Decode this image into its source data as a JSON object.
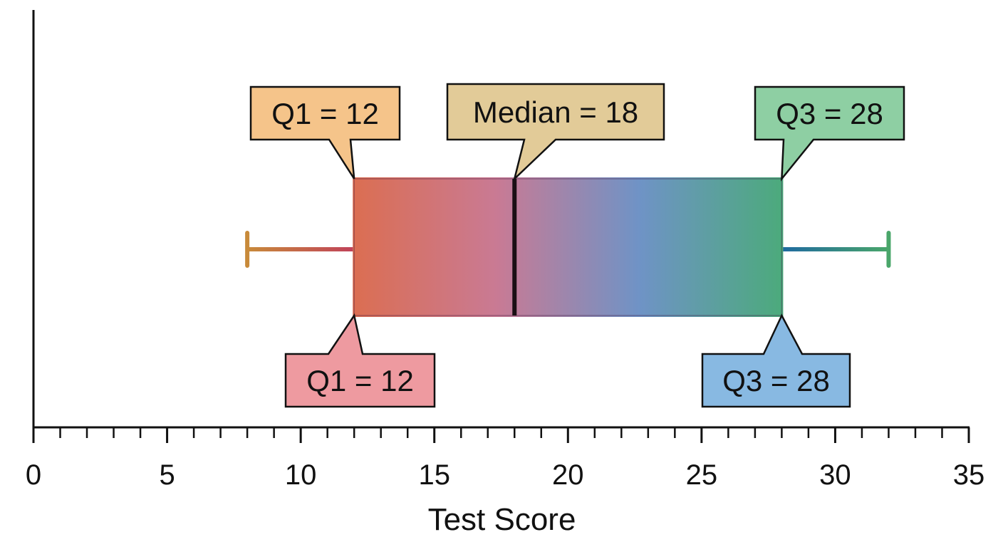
{
  "chart_data": {
    "type": "box",
    "xlabel": "Test Score",
    "xlim": [
      0,
      35
    ],
    "major_ticks": [
      0,
      5,
      10,
      15,
      20,
      25,
      30,
      35
    ],
    "minor_tick_step": 1,
    "box": {
      "whisker_low": 8,
      "q1": 12,
      "median": 18,
      "q3": 28,
      "whisker_high": 32
    },
    "gradient_colors": [
      "#db6e52",
      "#c97a94",
      "#6f93c6",
      "#4caa7c"
    ],
    "annotations": [
      {
        "id": "q1_top",
        "text": "Q1 = 12",
        "anchor_value": 12,
        "anchor_edge": "top",
        "fill": "#f5c48a"
      },
      {
        "id": "median_top",
        "text": "Median = 18",
        "anchor_value": 18,
        "anchor_edge": "top",
        "fill": "#e2cb98"
      },
      {
        "id": "q3_top",
        "text": "Q3 = 28",
        "anchor_value": 28,
        "anchor_edge": "top",
        "fill": "#8ecfa3"
      },
      {
        "id": "q1_bottom",
        "text": "Q1 = 12",
        "anchor_value": 12,
        "anchor_edge": "bottom",
        "fill": "#ee9aa0"
      },
      {
        "id": "q3_bottom",
        "text": "Q3 = 28",
        "anchor_value": 28,
        "anchor_edge": "bottom",
        "fill": "#88b9e2"
      }
    ]
  }
}
